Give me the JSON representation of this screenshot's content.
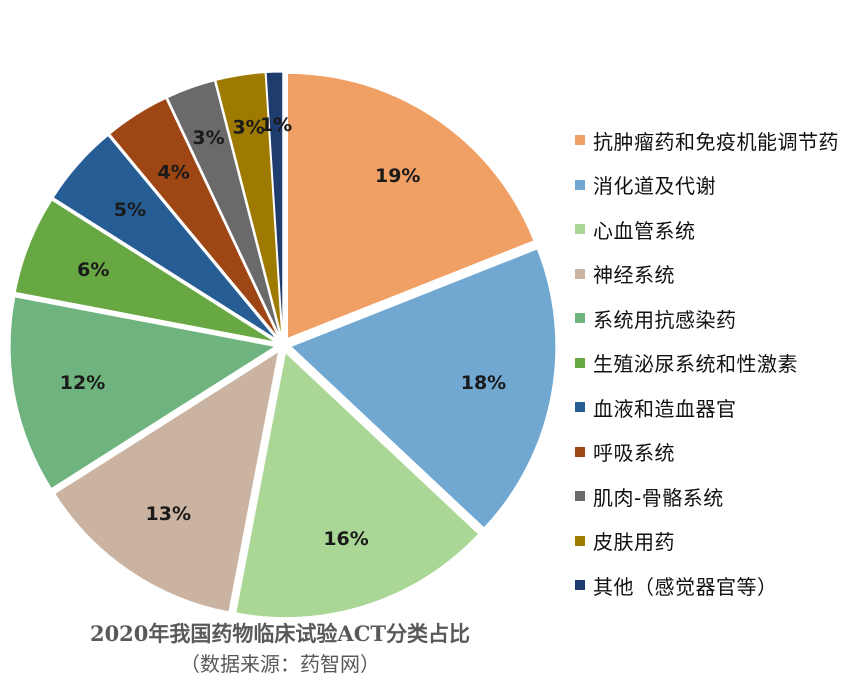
{
  "chart_data": {
    "type": "pie",
    "title": "2020年我国药物临床试验ACT分类占比",
    "subtitle": "（数据来源：药智网）",
    "legend_position": "right",
    "start_angle_deg": 0,
    "slices": [
      {
        "label": "抗肿瘤药和免疫机能调节药",
        "value": 19,
        "display": "19%",
        "color": "#F0A064"
      },
      {
        "label": "消化道及代谢",
        "value": 18,
        "display": "18%",
        "color": "#71A8D2"
      },
      {
        "label": "心血管系统",
        "value": 16,
        "display": "16%",
        "color": "#ABD796"
      },
      {
        "label": "神经系统",
        "value": 13,
        "display": "13%",
        "color": "#CBB3A2"
      },
      {
        "label": "系统用抗感染药",
        "value": 12,
        "display": "12%",
        "color": "#6FB47E"
      },
      {
        "label": "生殖泌尿系统和性激素",
        "value": 6,
        "display": "6%",
        "color": "#68A843"
      },
      {
        "label": "血液和造血器官",
        "value": 5,
        "display": "5%",
        "color": "#265D94"
      },
      {
        "label": "呼吸系统",
        "value": 4,
        "display": "4%",
        "color": "#9E4614"
      },
      {
        "label": "肌肉-骨骼系统",
        "value": 3,
        "display": "3%",
        "color": "#6A6A6A"
      },
      {
        "label": "皮肤用药",
        "value": 3,
        "display": "3%",
        "color": "#9E7A00"
      },
      {
        "label": "其他（感觉器官等）",
        "value": 1,
        "display": "1%",
        "color": "#1F3C6E"
      }
    ]
  }
}
